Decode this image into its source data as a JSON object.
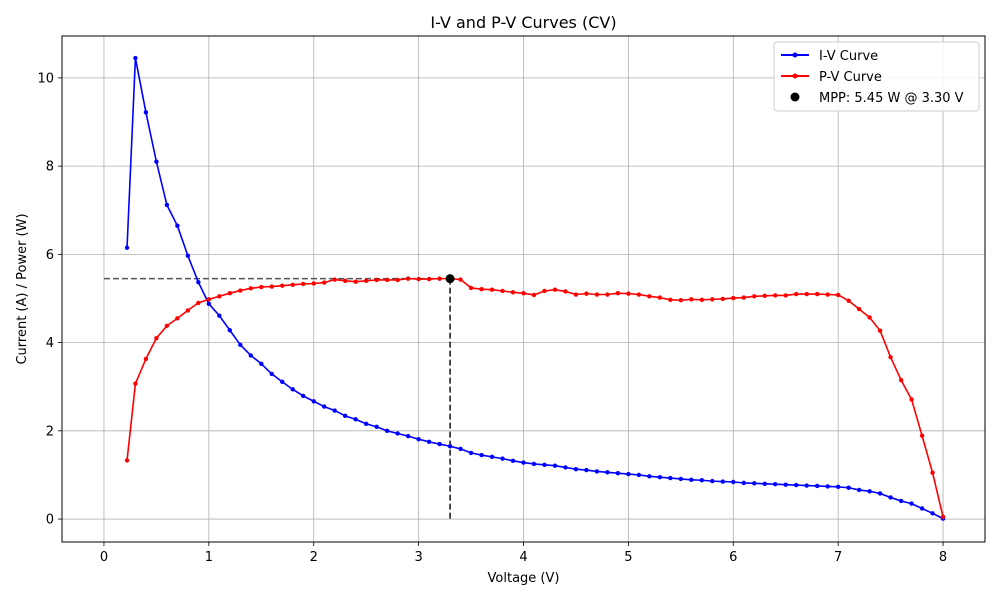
{
  "chart_data": {
    "type": "line",
    "title": "I-V and P-V Curves (CV)",
    "xlabel": "Voltage (V)",
    "ylabel": "Current (A) / Power (W)",
    "xlim": [
      -0.4,
      8.4
    ],
    "ylim": [
      -0.52,
      10.95
    ],
    "xticks": [
      0,
      1,
      2,
      3,
      4,
      5,
      6,
      7,
      8
    ],
    "yticks": [
      0,
      2,
      4,
      6,
      8,
      10
    ],
    "grid": true,
    "legend_position": "top-right",
    "series": [
      {
        "name": "I-V Curve",
        "color": "#0000ff",
        "marker": "dot",
        "x": [
          0.22,
          0.3,
          0.4,
          0.5,
          0.6,
          0.7,
          0.8,
          0.9,
          1.0,
          1.1,
          1.2,
          1.3,
          1.4,
          1.5,
          1.6,
          1.7,
          1.8,
          1.9,
          2.0,
          2.1,
          2.2,
          2.3,
          2.4,
          2.5,
          2.6,
          2.7,
          2.8,
          2.9,
          3.0,
          3.1,
          3.2,
          3.3,
          3.4,
          3.5,
          3.6,
          3.7,
          3.8,
          3.9,
          4.0,
          4.1,
          4.2,
          4.3,
          4.4,
          4.5,
          4.6,
          4.7,
          4.8,
          4.9,
          5.0,
          5.1,
          5.2,
          5.3,
          5.4,
          5.5,
          5.6,
          5.7,
          5.8,
          5.9,
          6.0,
          6.1,
          6.2,
          6.3,
          6.4,
          6.5,
          6.6,
          6.7,
          6.8,
          6.9,
          7.0,
          7.1,
          7.2,
          7.3,
          7.4,
          7.5,
          7.6,
          7.7,
          7.8,
          7.9,
          8.0
        ],
        "y": [
          6.15,
          10.45,
          9.22,
          8.1,
          7.12,
          6.65,
          5.97,
          5.37,
          4.88,
          4.61,
          4.28,
          3.95,
          3.71,
          3.52,
          3.29,
          3.11,
          2.94,
          2.79,
          2.67,
          2.55,
          2.46,
          2.34,
          2.26,
          2.16,
          2.09,
          2.0,
          1.94,
          1.88,
          1.81,
          1.75,
          1.7,
          1.65,
          1.59,
          1.5,
          1.45,
          1.41,
          1.37,
          1.32,
          1.28,
          1.25,
          1.23,
          1.21,
          1.17,
          1.13,
          1.11,
          1.08,
          1.06,
          1.04,
          1.02,
          1.0,
          0.97,
          0.95,
          0.93,
          0.91,
          0.89,
          0.88,
          0.86,
          0.85,
          0.84,
          0.82,
          0.81,
          0.8,
          0.79,
          0.78,
          0.77,
          0.76,
          0.75,
          0.74,
          0.73,
          0.71,
          0.66,
          0.63,
          0.58,
          0.49,
          0.41,
          0.35,
          0.24,
          0.13,
          0.01
        ]
      },
      {
        "name": "P-V Curve",
        "color": "#ff0000",
        "marker": "dot",
        "x": [
          0.22,
          0.3,
          0.4,
          0.5,
          0.6,
          0.7,
          0.8,
          0.9,
          1.0,
          1.1,
          1.2,
          1.3,
          1.4,
          1.5,
          1.6,
          1.7,
          1.8,
          1.9,
          2.0,
          2.1,
          2.2,
          2.3,
          2.4,
          2.5,
          2.6,
          2.7,
          2.8,
          2.9,
          3.0,
          3.1,
          3.2,
          3.3,
          3.4,
          3.5,
          3.6,
          3.7,
          3.8,
          3.9,
          4.0,
          4.1,
          4.2,
          4.3,
          4.4,
          4.5,
          4.6,
          4.7,
          4.8,
          4.9,
          5.0,
          5.1,
          5.2,
          5.3,
          5.4,
          5.5,
          5.6,
          5.7,
          5.8,
          5.9,
          6.0,
          6.1,
          6.2,
          6.3,
          6.4,
          6.5,
          6.6,
          6.7,
          6.8,
          6.9,
          7.0,
          7.1,
          7.2,
          7.3,
          7.4,
          7.5,
          7.6,
          7.7,
          7.8,
          7.9,
          8.0
        ],
        "y": [
          1.33,
          3.07,
          3.63,
          4.1,
          4.38,
          4.55,
          4.73,
          4.9,
          4.98,
          5.05,
          5.12,
          5.18,
          5.23,
          5.26,
          5.27,
          5.29,
          5.31,
          5.33,
          5.34,
          5.36,
          5.43,
          5.4,
          5.38,
          5.4,
          5.42,
          5.42,
          5.42,
          5.45,
          5.44,
          5.44,
          5.45,
          5.45,
          5.43,
          5.24,
          5.21,
          5.2,
          5.17,
          5.14,
          5.12,
          5.08,
          5.17,
          5.2,
          5.16,
          5.09,
          5.11,
          5.09,
          5.09,
          5.12,
          5.11,
          5.09,
          5.05,
          5.02,
          4.97,
          4.96,
          4.98,
          4.97,
          4.98,
          4.99,
          5.01,
          5.02,
          5.05,
          5.06,
          5.07,
          5.07,
          5.1,
          5.1,
          5.1,
          5.09,
          5.08,
          4.95,
          4.76,
          4.57,
          4.27,
          3.67,
          3.15,
          2.71,
          1.89,
          1.05,
          0.05
        ]
      }
    ],
    "mpp": {
      "label": "MPP: 5.45 W @ 3.30 V",
      "voltage": 3.3,
      "power": 5.45,
      "color": "#000000"
    }
  }
}
